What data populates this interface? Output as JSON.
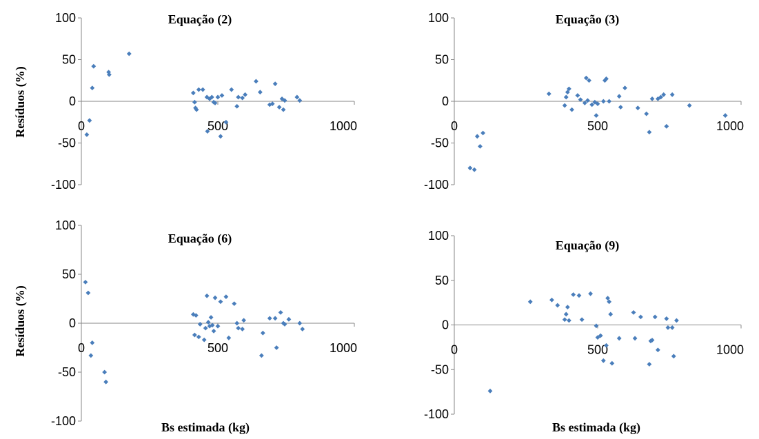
{
  "colors": {
    "marker": "#4a7ebb",
    "axis": "#878787",
    "text": "#000000"
  },
  "chart_data": [
    {
      "type": "scatter",
      "title": "Equação (2)",
      "xlabel": "",
      "ylabel": "Resíduos (%)",
      "xlim": [
        0,
        1000
      ],
      "ylim": [
        -100,
        100
      ],
      "xticks": [
        "0",
        "500",
        "1000"
      ],
      "yticks": [
        "100",
        "50",
        "0",
        "-50",
        "-100"
      ],
      "points": [
        [
          20,
          -40
        ],
        [
          30,
          -23
        ],
        [
          40,
          16
        ],
        [
          45,
          42
        ],
        [
          100,
          35
        ],
        [
          102,
          32
        ],
        [
          175,
          57
        ],
        [
          410,
          10
        ],
        [
          415,
          -1
        ],
        [
          418,
          -8
        ],
        [
          422,
          -10
        ],
        [
          430,
          14
        ],
        [
          445,
          14
        ],
        [
          460,
          5
        ],
        [
          462,
          -36
        ],
        [
          470,
          3
        ],
        [
          478,
          5
        ],
        [
          485,
          -1
        ],
        [
          490,
          -2
        ],
        [
          500,
          5
        ],
        [
          510,
          -42
        ],
        [
          515,
          7
        ],
        [
          530,
          -25
        ],
        [
          550,
          14
        ],
        [
          570,
          -6
        ],
        [
          575,
          5
        ],
        [
          590,
          4
        ],
        [
          600,
          8
        ],
        [
          640,
          24
        ],
        [
          655,
          11
        ],
        [
          690,
          -4
        ],
        [
          700,
          -3
        ],
        [
          710,
          21
        ],
        [
          725,
          -7
        ],
        [
          735,
          3
        ],
        [
          740,
          -10
        ],
        [
          745,
          1
        ],
        [
          790,
          5
        ],
        [
          800,
          1
        ]
      ]
    },
    {
      "type": "scatter",
      "title": "Equação (3)",
      "xlabel": "",
      "ylabel": "",
      "xlim": [
        0,
        1000
      ],
      "ylim": [
        -100,
        100
      ],
      "xticks": [
        "0",
        "500",
        "1000"
      ],
      "yticks": [
        "100",
        "50",
        "0",
        "-50",
        "-100"
      ],
      "points": [
        [
          55,
          -80
        ],
        [
          70,
          -82
        ],
        [
          80,
          -42
        ],
        [
          90,
          -54
        ],
        [
          100,
          -38
        ],
        [
          330,
          9
        ],
        [
          385,
          -5
        ],
        [
          390,
          5
        ],
        [
          395,
          11
        ],
        [
          400,
          15
        ],
        [
          410,
          -10
        ],
        [
          430,
          7
        ],
        [
          440,
          2
        ],
        [
          455,
          -2
        ],
        [
          460,
          28
        ],
        [
          465,
          1
        ],
        [
          470,
          25
        ],
        [
          480,
          -4
        ],
        [
          490,
          -1
        ],
        [
          495,
          -17
        ],
        [
          500,
          -3
        ],
        [
          520,
          0
        ],
        [
          525,
          25
        ],
        [
          530,
          27
        ],
        [
          540,
          0
        ],
        [
          575,
          6
        ],
        [
          580,
          -7
        ],
        [
          595,
          16
        ],
        [
          640,
          -8
        ],
        [
          670,
          -15
        ],
        [
          680,
          -37
        ],
        [
          690,
          3
        ],
        [
          710,
          3
        ],
        [
          720,
          5
        ],
        [
          730,
          8
        ],
        [
          740,
          -30
        ],
        [
          760,
          8
        ],
        [
          820,
          -5
        ],
        [
          945,
          -17
        ]
      ]
    },
    {
      "type": "scatter",
      "title": "Equação (6)",
      "xlabel": "Bs estimada (kg)",
      "ylabel": "Resíduos (%)",
      "xlim": [
        0,
        1000
      ],
      "ylim": [
        -100,
        100
      ],
      "xticks": [
        "0",
        "500",
        "1000"
      ],
      "yticks": [
        "100",
        "50",
        "0",
        "-50",
        "-100"
      ],
      "points": [
        [
          15,
          42
        ],
        [
          25,
          31
        ],
        [
          35,
          -33
        ],
        [
          40,
          -20
        ],
        [
          85,
          -50
        ],
        [
          90,
          -60
        ],
        [
          410,
          9
        ],
        [
          415,
          -12
        ],
        [
          420,
          8
        ],
        [
          430,
          -14
        ],
        [
          435,
          -1
        ],
        [
          450,
          -17
        ],
        [
          455,
          -5
        ],
        [
          460,
          28
        ],
        [
          465,
          1
        ],
        [
          470,
          -3
        ],
        [
          475,
          6
        ],
        [
          480,
          -2
        ],
        [
          485,
          -8
        ],
        [
          490,
          26
        ],
        [
          500,
          -3
        ],
        [
          510,
          22
        ],
        [
          530,
          27
        ],
        [
          540,
          -15
        ],
        [
          560,
          20
        ],
        [
          570,
          0
        ],
        [
          575,
          -5
        ],
        [
          590,
          -6
        ],
        [
          595,
          3
        ],
        [
          660,
          -33
        ],
        [
          665,
          -10
        ],
        [
          690,
          5
        ],
        [
          710,
          5
        ],
        [
          715,
          -25
        ],
        [
          730,
          11
        ],
        [
          740,
          0
        ],
        [
          745,
          -1
        ],
        [
          760,
          4
        ],
        [
          800,
          0
        ],
        [
          810,
          -6
        ]
      ]
    },
    {
      "type": "scatter",
      "title": "Equação (9)",
      "xlabel": "Bs estimada (kg)",
      "ylabel": "",
      "xlim": [
        0,
        1000
      ],
      "ylim": [
        -100,
        100
      ],
      "xticks": [
        "0",
        "500",
        "1000"
      ],
      "yticks": [
        "100",
        "50",
        "0",
        "-50",
        "-100"
      ],
      "points": [
        [
          125,
          -74
        ],
        [
          265,
          26
        ],
        [
          340,
          28
        ],
        [
          360,
          22
        ],
        [
          385,
          6
        ],
        [
          390,
          12
        ],
        [
          395,
          20
        ],
        [
          400,
          5
        ],
        [
          415,
          34
        ],
        [
          435,
          33
        ],
        [
          445,
          6
        ],
        [
          475,
          35
        ],
        [
          495,
          -1
        ],
        [
          500,
          -14
        ],
        [
          510,
          -12
        ],
        [
          520,
          -40
        ],
        [
          530,
          -23
        ],
        [
          535,
          30
        ],
        [
          540,
          26
        ],
        [
          545,
          12
        ],
        [
          550,
          -43
        ],
        [
          575,
          -15
        ],
        [
          625,
          14
        ],
        [
          630,
          -15
        ],
        [
          650,
          9
        ],
        [
          680,
          -44
        ],
        [
          685,
          -18
        ],
        [
          690,
          -17
        ],
        [
          700,
          9
        ],
        [
          710,
          -28
        ],
        [
          740,
          7
        ],
        [
          745,
          -3
        ],
        [
          760,
          -3
        ],
        [
          765,
          -35
        ],
        [
          775,
          5
        ]
      ]
    }
  ]
}
